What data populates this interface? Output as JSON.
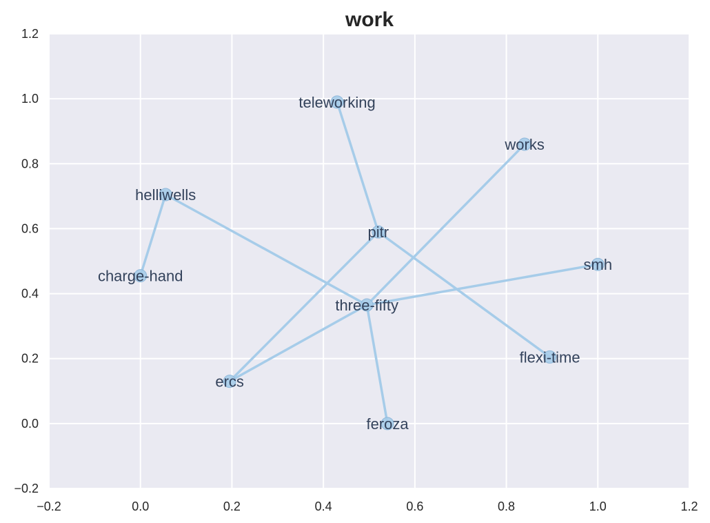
{
  "chart_data": {
    "type": "scatter",
    "title": "work",
    "xlabel": "",
    "ylabel": "",
    "xlim": [
      -0.2,
      1.2
    ],
    "ylim": [
      -0.2,
      1.2
    ],
    "xticks": [
      -0.2,
      0.0,
      0.2,
      0.4,
      0.6,
      0.8,
      1.0,
      1.2
    ],
    "yticks": [
      -0.2,
      0.0,
      0.2,
      0.4,
      0.6,
      0.8,
      1.0,
      1.2
    ],
    "xtick_labels": [
      "−0.2",
      "0.0",
      "0.2",
      "0.4",
      "0.6",
      "0.8",
      "1.0",
      "1.2"
    ],
    "ytick_labels": [
      "−0.2",
      "0.0",
      "0.2",
      "0.4",
      "0.6",
      "0.8",
      "1.0",
      "1.2"
    ],
    "grid": true,
    "background_color": "#eaeaf2",
    "grid_color": "#ffffff",
    "edge_color": "#a6cce9",
    "node_color": "#a6cce9",
    "nodes": [
      {
        "id": "teleworking",
        "label": "teleworking",
        "x": 0.43,
        "y": 0.99
      },
      {
        "id": "works",
        "label": "works",
        "x": 0.84,
        "y": 0.86
      },
      {
        "id": "helliwells",
        "label": "helliwells",
        "x": 0.055,
        "y": 0.705
      },
      {
        "id": "pitr",
        "label": "pitr",
        "x": 0.52,
        "y": 0.59
      },
      {
        "id": "smh",
        "label": "smh",
        "x": 1.0,
        "y": 0.49
      },
      {
        "id": "charge-hand",
        "label": "charge-hand",
        "x": 0.0,
        "y": 0.455
      },
      {
        "id": "three-fifty",
        "label": "three-fifty",
        "x": 0.495,
        "y": 0.365
      },
      {
        "id": "flexi-time",
        "label": "flexi-time",
        "x": 0.895,
        "y": 0.205
      },
      {
        "id": "ercs",
        "label": "ercs",
        "x": 0.195,
        "y": 0.13
      },
      {
        "id": "feroza",
        "label": "feroza",
        "x": 0.54,
        "y": 0.0
      }
    ],
    "edges": [
      [
        "teleworking",
        "pitr"
      ],
      [
        "pitr",
        "flexi-time"
      ],
      [
        "pitr",
        "ercs"
      ],
      [
        "ercs",
        "three-fifty"
      ],
      [
        "three-fifty",
        "works"
      ],
      [
        "three-fifty",
        "smh"
      ],
      [
        "three-fifty",
        "feroza"
      ],
      [
        "three-fifty",
        "helliwells"
      ],
      [
        "helliwells",
        "charge-hand"
      ]
    ]
  }
}
